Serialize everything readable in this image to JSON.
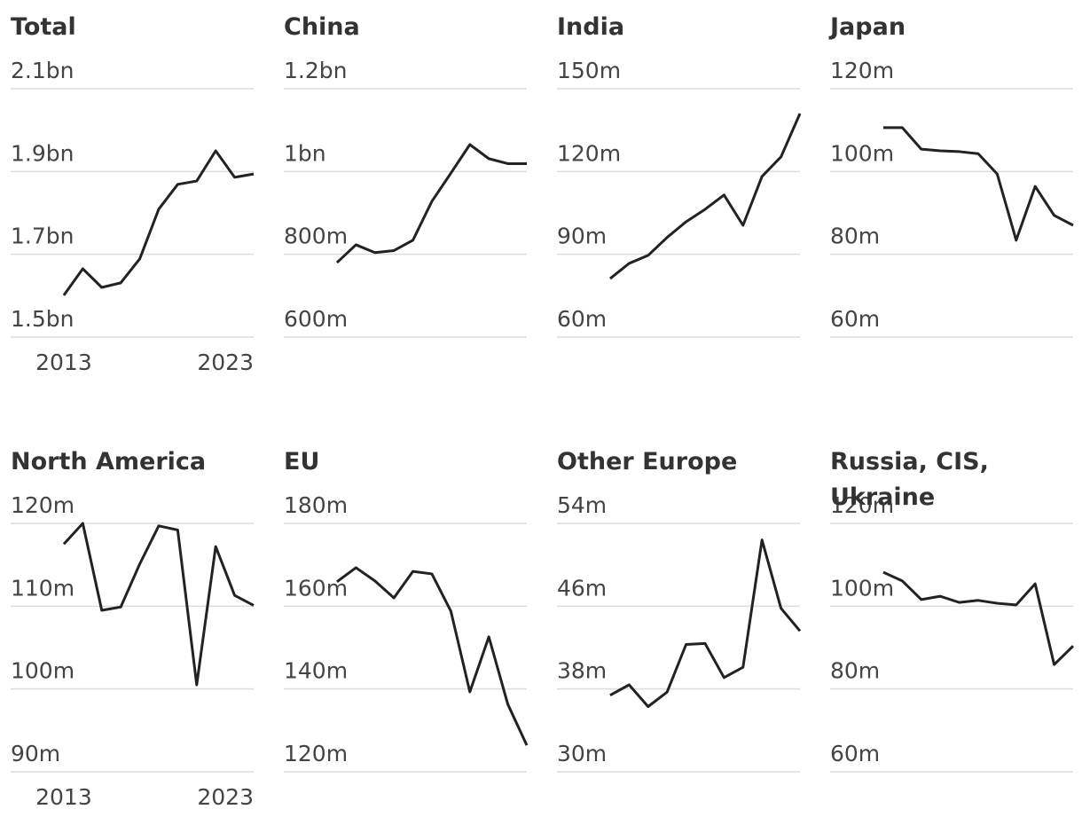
{
  "chart_data": [
    {
      "type": "line",
      "title": "Total",
      "x": [
        2013,
        2014,
        2015,
        2016,
        2017,
        2018,
        2019,
        2020,
        2021,
        2022,
        2023
      ],
      "values": [
        1601,
        1665,
        1620,
        1631,
        1689,
        1809,
        1869,
        1877,
        1950,
        1886,
        1894
      ],
      "color": "#222222",
      "xlim": [
        2010.2,
        2023
      ],
      "ylim": [
        1500,
        2100
      ],
      "yticks": [
        {
          "value": 1500,
          "label": "1.5bn"
        },
        {
          "value": 1700,
          "label": "1.7bn"
        },
        {
          "value": 1900,
          "label": "1.9bn"
        },
        {
          "value": 2100,
          "label": "2.1bn"
        }
      ],
      "xticks": [
        2013,
        2023
      ],
      "grid": true
    },
    {
      "type": "line",
      "title": "China",
      "x": [
        2013,
        2014,
        2015,
        2016,
        2017,
        2018,
        2019,
        2020,
        2021,
        2022,
        2023
      ],
      "values": [
        780,
        823,
        804,
        809,
        834,
        928,
        996,
        1065,
        1031,
        1019,
        1019
      ],
      "color": "#222222",
      "xlim": [
        2010.2,
        2023
      ],
      "ylim": [
        600,
        1200
      ],
      "yticks": [
        {
          "value": 600,
          "label": "600m"
        },
        {
          "value": 800,
          "label": "800m"
        },
        {
          "value": 1000,
          "label": "1bn"
        },
        {
          "value": 1200,
          "label": "1.2bn"
        }
      ],
      "grid": true
    },
    {
      "type": "line",
      "title": "India",
      "x": [
        2013,
        2014,
        2015,
        2016,
        2017,
        2018,
        2019,
        2020,
        2021,
        2022,
        2023
      ],
      "values": [
        81.2,
        86.7,
        89.6,
        96.1,
        101.8,
        106.3,
        111.5,
        100.5,
        118.2,
        125.3,
        141.0
      ],
      "color": "#222222",
      "xlim": [
        2010.2,
        2023
      ],
      "ylim": [
        60,
        150
      ],
      "yticks": [
        {
          "value": 60,
          "label": "60m"
        },
        {
          "value": 90,
          "label": "90m"
        },
        {
          "value": 120,
          "label": "120m"
        },
        {
          "value": 150,
          "label": "150m"
        }
      ],
      "grid": true
    },
    {
      "type": "line",
      "title": "Japan",
      "x": [
        2013,
        2014,
        2015,
        2016,
        2017,
        2018,
        2019,
        2020,
        2021,
        2022,
        2023
      ],
      "values": [
        110.6,
        110.6,
        105.4,
        105.0,
        104.8,
        104.3,
        99.4,
        83.4,
        96.4,
        89.4,
        87.0
      ],
      "color": "#222222",
      "xlim": [
        2010.2,
        2023
      ],
      "ylim": [
        60,
        120
      ],
      "yticks": [
        {
          "value": 60,
          "label": "60m"
        },
        {
          "value": 80,
          "label": "80m"
        },
        {
          "value": 100,
          "label": "100m"
        },
        {
          "value": 120,
          "label": "120m"
        }
      ],
      "grid": true
    },
    {
      "type": "line",
      "title": "North America",
      "x": [
        2013,
        2014,
        2015,
        2016,
        2017,
        2018,
        2019,
        2020,
        2021,
        2022,
        2023
      ],
      "values": [
        117.5,
        120.0,
        109.5,
        109.9,
        115.1,
        119.7,
        119.2,
        100.5,
        117.2,
        111.3,
        110.1
      ],
      "color": "#222222",
      "xlim": [
        2010.2,
        2023
      ],
      "ylim": [
        90,
        120
      ],
      "yticks": [
        {
          "value": 90,
          "label": "90m"
        },
        {
          "value": 100,
          "label": "100m"
        },
        {
          "value": 110,
          "label": "110m"
        },
        {
          "value": 120,
          "label": "120m"
        }
      ],
      "xticks": [
        2013,
        2023
      ],
      "grid": true
    },
    {
      "type": "line",
      "title": "EU",
      "x": [
        2013,
        2014,
        2015,
        2016,
        2017,
        2018,
        2019,
        2020,
        2021,
        2022,
        2023
      ],
      "values": [
        165.9,
        169.3,
        166.1,
        162.0,
        168.4,
        167.8,
        158.8,
        139.3,
        152.6,
        136.3,
        126.4
      ],
      "color": "#222222",
      "xlim": [
        2010.2,
        2023
      ],
      "ylim": [
        120,
        180
      ],
      "yticks": [
        {
          "value": 120,
          "label": "120m"
        },
        {
          "value": 140,
          "label": "140m"
        },
        {
          "value": 160,
          "label": "160m"
        },
        {
          "value": 180,
          "label": "180m"
        }
      ],
      "grid": true
    },
    {
      "type": "line",
      "title": "Other Europe",
      "x": [
        2013,
        2014,
        2015,
        2016,
        2017,
        2018,
        2019,
        2020,
        2021,
        2022,
        2023
      ],
      "values": [
        37.4,
        38.4,
        36.3,
        37.7,
        42.3,
        42.4,
        39.1,
        40.1,
        52.4,
        45.8,
        43.6
      ],
      "color": "#222222",
      "xlim": [
        2010.2,
        2023
      ],
      "ylim": [
        30,
        54
      ],
      "yticks": [
        {
          "value": 30,
          "label": "30m"
        },
        {
          "value": 38,
          "label": "38m"
        },
        {
          "value": 46,
          "label": "46m"
        },
        {
          "value": 54,
          "label": "54m"
        }
      ],
      "grid": true
    },
    {
      "type": "line",
      "title": "Russia, CIS, Ukraine",
      "x": [
        2013,
        2014,
        2015,
        2016,
        2017,
        2018,
        2019,
        2020,
        2021,
        2022,
        2023
      ],
      "values": [
        108.2,
        106.1,
        101.6,
        102.4,
        100.9,
        101.4,
        100.7,
        100.3,
        105.4,
        85.9,
        90.4
      ],
      "color": "#222222",
      "xlim": [
        2010.2,
        2023
      ],
      "ylim": [
        60,
        120
      ],
      "yticks": [
        {
          "value": 60,
          "label": "60m"
        },
        {
          "value": 80,
          "label": "80m"
        },
        {
          "value": 100,
          "label": "100m"
        },
        {
          "value": 120,
          "label": "120m"
        }
      ],
      "grid": true
    }
  ]
}
